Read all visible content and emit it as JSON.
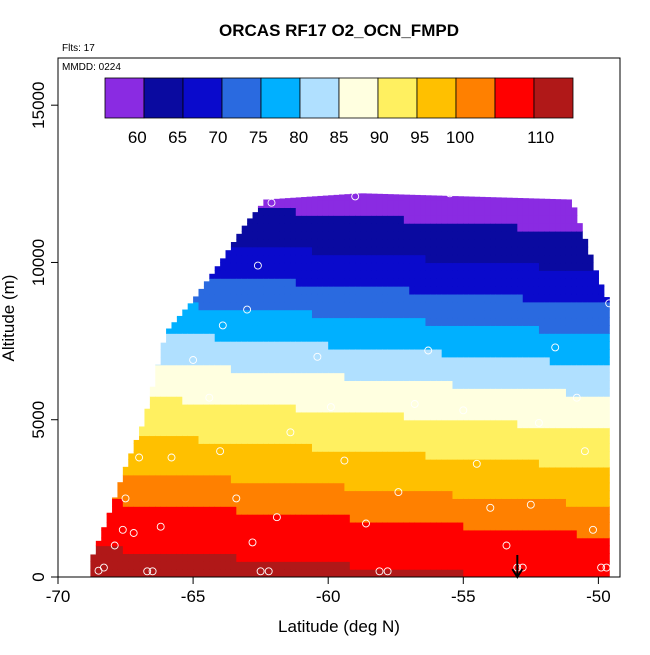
{
  "chart_data": {
    "type": "heatmap",
    "title": "ORCAS RF17 O2_OCN_FMPD",
    "flights_note": "Flts: 17",
    "date_note": "MMDD: 0224",
    "xlabel": "Latitude (deg N)",
    "ylabel": "Altitude (m)",
    "xlim": [
      -70,
      -49.2
    ],
    "ylim": [
      0,
      16500
    ],
    "x_ticks": [
      -70,
      -65,
      -60,
      -55,
      -50
    ],
    "x_tick_labels": [
      "-70",
      "-65",
      "-60",
      "-55",
      "-50"
    ],
    "y_ticks": [
      0,
      5000,
      10000,
      15000
    ],
    "y_tick_labels": [
      "0",
      "5000",
      "10000",
      "15000"
    ],
    "colorbar": {
      "range": [
        56,
        114
      ],
      "ticks": [
        60,
        65,
        70,
        75,
        80,
        85,
        90,
        95,
        100,
        110
      ],
      "tick_labels": [
        "60",
        "65",
        "70",
        "75",
        "80",
        "85",
        "90",
        "95",
        "100",
        "110"
      ],
      "colors": [
        "#8a2be2",
        "#0a0aa0",
        "#0a0acc",
        "#2a6ae0",
        "#00b0ff",
        "#b0e0ff",
        "#ffffe0",
        "#fff060",
        "#ffc000",
        "#ff8000",
        "#ff0000",
        "#b01818"
      ]
    },
    "marker": {
      "latitude": -53.0,
      "from_alt": 700,
      "to_alt": 0
    },
    "field_profile": [
      {
        "alt": 0,
        "value": 110
      },
      {
        "alt": 1000,
        "value": 108
      },
      {
        "alt": 2000,
        "value": 104
      },
      {
        "alt": 3000,
        "value": 99
      },
      {
        "alt": 4000,
        "value": 95
      },
      {
        "alt": 5000,
        "value": 91
      },
      {
        "alt": 6000,
        "value": 87
      },
      {
        "alt": 7000,
        "value": 82
      },
      {
        "alt": 8000,
        "value": 77
      },
      {
        "alt": 9000,
        "value": 72
      },
      {
        "alt": 10000,
        "value": 67
      },
      {
        "alt": 11000,
        "value": 63
      },
      {
        "alt": 12000,
        "value": 59
      }
    ],
    "domain_envelope": [
      {
        "lat": -68.8,
        "bottom": 0,
        "top": 500
      },
      {
        "lat": -68.2,
        "bottom": 0,
        "top": 1800
      },
      {
        "lat": -67.5,
        "bottom": 0,
        "top": 3500
      },
      {
        "lat": -66.8,
        "bottom": 0,
        "top": 5000
      },
      {
        "lat": -66.0,
        "bottom": 0,
        "top": 7800
      },
      {
        "lat": -65.0,
        "bottom": 0,
        "top": 8800
      },
      {
        "lat": -64.0,
        "bottom": 0,
        "top": 10000
      },
      {
        "lat": -63.0,
        "bottom": 0,
        "top": 11300
      },
      {
        "lat": -62.3,
        "bottom": 0,
        "top": 12000
      },
      {
        "lat": -58.8,
        "bottom": 0,
        "top": 12200
      },
      {
        "lat": -51.0,
        "bottom": 0,
        "top": 12000
      },
      {
        "lat": -50.6,
        "bottom": 0,
        "top": 11000
      },
      {
        "lat": -50.0,
        "bottom": 0,
        "top": 9500
      },
      {
        "lat": -49.6,
        "bottom": 0,
        "top": 8700
      }
    ],
    "observation_points": [
      {
        "lat": -68.5,
        "alt": 200
      },
      {
        "lat": -68.3,
        "alt": 300
      },
      {
        "lat": -67.9,
        "alt": 1000
      },
      {
        "lat": -67.6,
        "alt": 1500
      },
      {
        "lat": -67.5,
        "alt": 2500
      },
      {
        "lat": -67.2,
        "alt": 1400
      },
      {
        "lat": -67.0,
        "alt": 3800
      },
      {
        "lat": -66.7,
        "alt": 180
      },
      {
        "lat": -66.5,
        "alt": 180
      },
      {
        "lat": -66.2,
        "alt": 1600
      },
      {
        "lat": -65.8,
        "alt": 3800
      },
      {
        "lat": -65.0,
        "alt": 6900
      },
      {
        "lat": -64.4,
        "alt": 5700
      },
      {
        "lat": -64.0,
        "alt": 4000
      },
      {
        "lat": -63.9,
        "alt": 8000
      },
      {
        "lat": -63.4,
        "alt": 2500
      },
      {
        "lat": -63.0,
        "alt": 8500
      },
      {
        "lat": -62.8,
        "alt": 1100
      },
      {
        "lat": -62.6,
        "alt": 9900
      },
      {
        "lat": -62.5,
        "alt": 180
      },
      {
        "lat": -62.2,
        "alt": 180
      },
      {
        "lat": -62.1,
        "alt": 11900
      },
      {
        "lat": -61.9,
        "alt": 1900
      },
      {
        "lat": -61.4,
        "alt": 4600
      },
      {
        "lat": -60.4,
        "alt": 7000
      },
      {
        "lat": -59.9,
        "alt": 5400
      },
      {
        "lat": -59.4,
        "alt": 3700
      },
      {
        "lat": -59.0,
        "alt": 12100
      },
      {
        "lat": -58.6,
        "alt": 1700
      },
      {
        "lat": -58.1,
        "alt": 180
      },
      {
        "lat": -57.8,
        "alt": 180
      },
      {
        "lat": -57.4,
        "alt": 2700
      },
      {
        "lat": -56.8,
        "alt": 5500
      },
      {
        "lat": -56.3,
        "alt": 7200
      },
      {
        "lat": -55.5,
        "alt": 12200
      },
      {
        "lat": -55.0,
        "alt": 5300
      },
      {
        "lat": -54.5,
        "alt": 3600
      },
      {
        "lat": -54.0,
        "alt": 2200
      },
      {
        "lat": -53.4,
        "alt": 1000
      },
      {
        "lat": -53.0,
        "alt": 300
      },
      {
        "lat": -52.8,
        "alt": 300
      },
      {
        "lat": -52.5,
        "alt": 2300
      },
      {
        "lat": -52.2,
        "alt": 4900
      },
      {
        "lat": -51.6,
        "alt": 7300
      },
      {
        "lat": -50.8,
        "alt": 5700
      },
      {
        "lat": -50.7,
        "alt": 11900
      },
      {
        "lat": -50.5,
        "alt": 4000
      },
      {
        "lat": -50.2,
        "alt": 1500
      },
      {
        "lat": -49.9,
        "alt": 300
      },
      {
        "lat": -49.7,
        "alt": 300
      },
      {
        "lat": -49.6,
        "alt": 8700
      },
      {
        "lat": -49.4,
        "alt": 800
      }
    ]
  }
}
